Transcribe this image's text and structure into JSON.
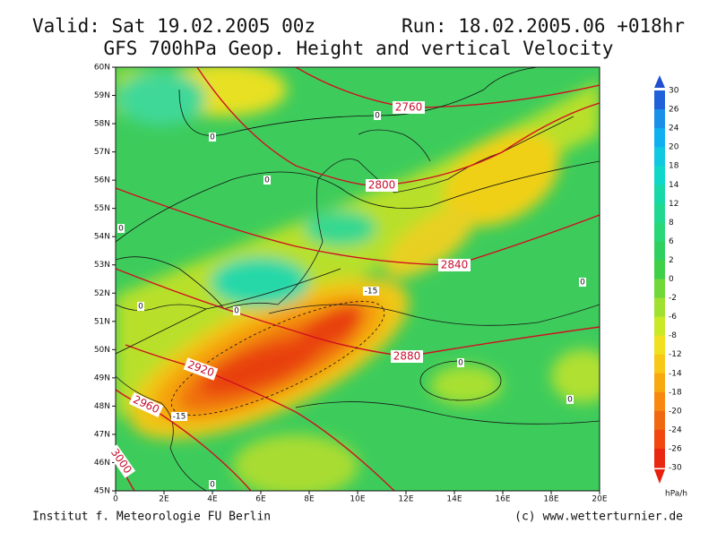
{
  "header": {
    "valid": "Valid: Sat 19.02.2005 00z",
    "run": "Run: 18.02.2005.06 +018hr",
    "title": "GFS 700hPa Geop. Height and vertical Velocity"
  },
  "map": {
    "lat_labels": [
      "45N",
      "46N",
      "47N",
      "48N",
      "49N",
      "50N",
      "51N",
      "52N",
      "53N",
      "54N",
      "55N",
      "56N",
      "57N",
      "58N",
      "59N",
      "60N"
    ],
    "lon_labels": [
      "0",
      "2E",
      "4E",
      "6E",
      "8E",
      "10E",
      "12E",
      "14E",
      "16E",
      "18E",
      "20E"
    ],
    "height_labels": [
      "2760",
      "2800",
      "2840",
      "2880",
      "2920",
      "2960",
      "3000"
    ],
    "velocity_labels": [
      "0",
      "0",
      "0",
      "0",
      "0",
      "0",
      "0",
      "0",
      "0",
      "0",
      "-15",
      "-15"
    ]
  },
  "colorbar": {
    "labels": [
      "30",
      "26",
      "24",
      "20",
      "18",
      "14",
      "12",
      "8",
      "6",
      "2",
      "0",
      "-2",
      "-6",
      "-8",
      "-12",
      "-14",
      "-18",
      "-20",
      "-24",
      "-26",
      "-30"
    ],
    "unit": "hPa/h"
  },
  "footer": {
    "left": "Institut f. Meteorologie  FU Berlin",
    "right": "(c) www.wetterturnier.de"
  }
}
